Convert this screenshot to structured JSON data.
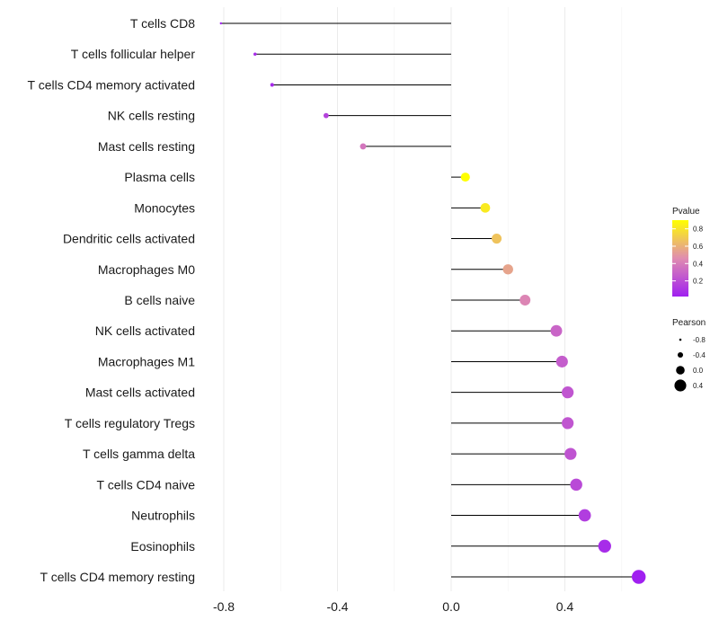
{
  "chart_data": {
    "type": "lollipop",
    "title": "",
    "xlabel": "",
    "ylabel": "",
    "xlim": [
      -0.86,
      0.72
    ],
    "x_ticks": [
      -0.8,
      -0.4,
      0.0,
      0.4
    ],
    "x_tick_labels": [
      "-0.8",
      "-0.4",
      "0.0",
      "0.4"
    ],
    "grid": true,
    "categories": [
      "T cells CD8",
      "T cells follicular helper",
      "T cells CD4 memory activated",
      "NK cells resting",
      "Mast cells resting",
      "Plasma cells",
      "Monocytes",
      "Dendritic cells activated",
      "Macrophages M0",
      "B cells naive",
      "NK cells activated",
      "Macrophages M1",
      "Mast cells activated",
      "T cells regulatory  Tregs",
      "T cells gamma delta",
      "T cells CD4 naive",
      "Neutrophils",
      "Eosinophils",
      "T cells CD4 memory resting"
    ],
    "pearson": [
      -0.81,
      -0.69,
      -0.63,
      -0.44,
      -0.31,
      0.05,
      0.12,
      0.16,
      0.2,
      0.26,
      0.37,
      0.39,
      0.41,
      0.41,
      0.42,
      0.44,
      0.47,
      0.54,
      0.66
    ],
    "pvalue": [
      0.03,
      0.07,
      0.06,
      0.16,
      0.37,
      0.9,
      0.82,
      0.67,
      0.55,
      0.43,
      0.3,
      0.27,
      0.24,
      0.24,
      0.23,
      0.19,
      0.14,
      0.07,
      0.02
    ],
    "color_legend": {
      "title": "Pvalue",
      "range": [
        0.02,
        0.9
      ],
      "ticks": [
        0.2,
        0.4,
        0.6,
        0.8
      ],
      "tick_labels": [
        "0.2",
        "0.4",
        "0.6",
        "0.8"
      ],
      "color_low": "#a020f0",
      "color_high": "#ffff00"
    },
    "size_legend": {
      "title": "Pearson",
      "values": [
        -0.8,
        -0.4,
        0.0,
        0.4
      ],
      "labels": [
        "-0.8",
        "-0.4",
        "0.0",
        "0.4"
      ]
    },
    "legend_position": "right"
  }
}
